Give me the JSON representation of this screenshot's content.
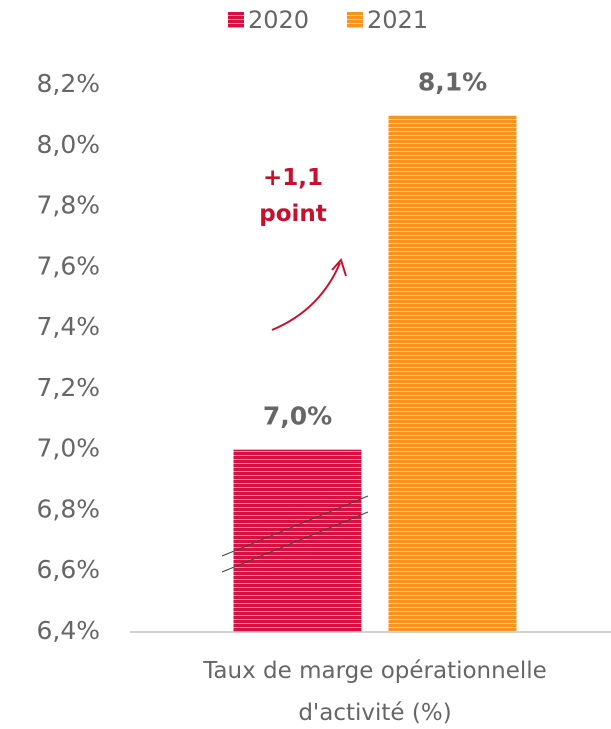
{
  "chart_data": {
    "type": "bar",
    "categories": [
      "Taux de marge opérationnelle d'activité (%)"
    ],
    "series": [
      {
        "name": "2020",
        "color": "#d8103f",
        "values": [
          7.0
        ],
        "value_labels": [
          "7,0%"
        ]
      },
      {
        "name": "2021",
        "color": "#f7941d",
        "values": [
          8.1
        ],
        "value_labels": [
          "8,1%"
        ]
      }
    ],
    "ylim": [
      6.4,
      8.2
    ],
    "yticks": [
      {
        "value": 6.4,
        "label": "6,4%"
      },
      {
        "value": 6.6,
        "label": "6,6%"
      },
      {
        "value": 6.8,
        "label": "6,8%"
      },
      {
        "value": 7.0,
        "label": "7,0%"
      },
      {
        "value": 7.2,
        "label": "7,2%"
      },
      {
        "value": 7.4,
        "label": "7,4%"
      },
      {
        "value": 7.6,
        "label": "7,6%"
      },
      {
        "value": 7.8,
        "label": "7,8%"
      },
      {
        "value": 8.0,
        "label": "8,0%"
      },
      {
        "value": 8.2,
        "label": "8,2%"
      }
    ],
    "annotation": "+1,1 point",
    "grid": false,
    "legend": "top"
  }
}
